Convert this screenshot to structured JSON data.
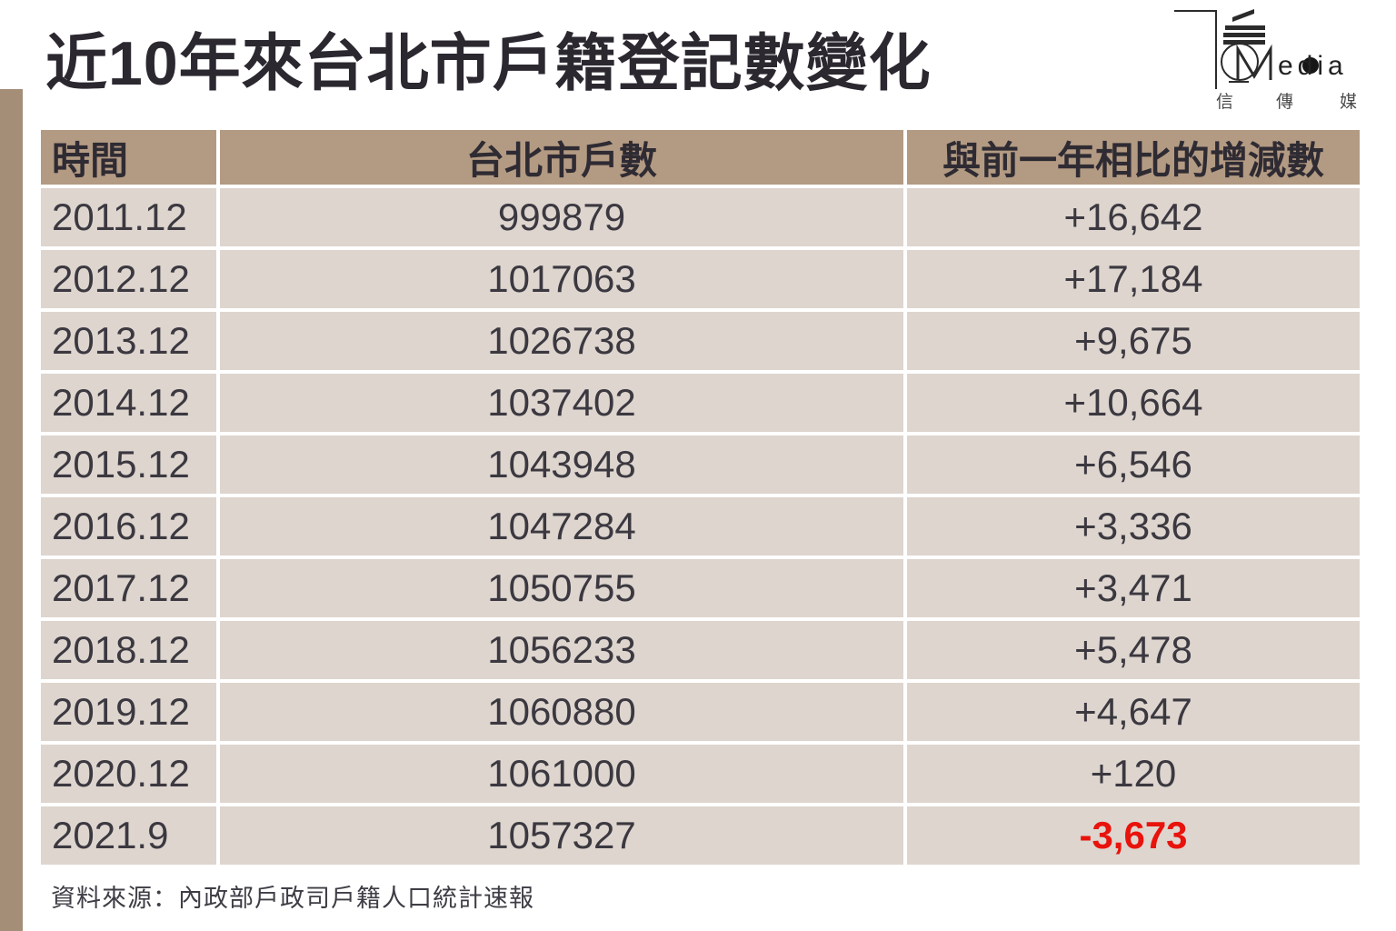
{
  "page": {
    "title": "近10年來台北市戶籍登記數變化",
    "source_note": "資料來源：內政部戶政司戶籍人口統計速報"
  },
  "logo": {
    "latin": "edia",
    "cjk": [
      "信",
      "傳",
      "媒"
    ]
  },
  "colors": {
    "header_bg": "#b39a83",
    "row_bg": "#ddd5ce",
    "accent_bar": "#a58e78",
    "negative": "#e8130c",
    "ink": "#2b2830"
  },
  "chart_data": {
    "type": "table",
    "title": "近10年來台北市戶籍登記數變化",
    "columns": [
      "時間",
      "台北市戶數",
      "與前一年相比的增減數"
    ],
    "rows": [
      [
        "2011.12",
        "999879",
        "+16,642"
      ],
      [
        "2012.12",
        "1017063",
        "+17,184"
      ],
      [
        "2013.12",
        "1026738",
        "+9,675"
      ],
      [
        "2014.12",
        "1037402",
        "+10,664"
      ],
      [
        "2015.12",
        "1043948",
        "+6,546"
      ],
      [
        "2016.12",
        "1047284",
        "+3,336"
      ],
      [
        "2017.12",
        "1050755",
        "+3,471"
      ],
      [
        "2018.12",
        "1056233",
        "+5,478"
      ],
      [
        "2019.12",
        "1060880",
        "+4,647"
      ],
      [
        "2020.12",
        "1061000",
        "+120"
      ],
      [
        "2021.9",
        "1057327",
        "-3,673"
      ]
    ],
    "source": "資料來源：內政部戶政司戶籍人口統計速報",
    "negative_color": "#e8130c"
  }
}
